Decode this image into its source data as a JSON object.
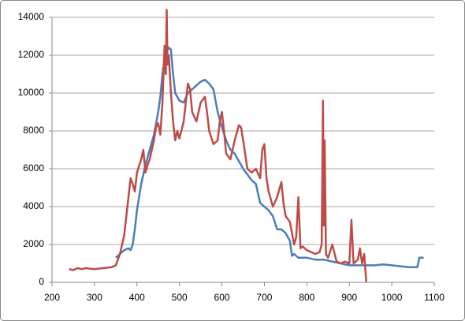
{
  "chart_data": {
    "type": "line",
    "xlim": [
      200,
      1100
    ],
    "xticks": [
      200,
      300,
      400,
      500,
      600,
      700,
      800,
      900,
      1000,
      1100
    ],
    "ylim": [
      0,
      14000
    ],
    "yticks": [
      0,
      2000,
      4000,
      6000,
      8000,
      10000,
      12000,
      14000
    ],
    "grid": true,
    "series": [
      {
        "color": "#4a7ebb",
        "x": [
          350,
          360,
          370,
          380,
          385,
          390,
          395,
          400,
          405,
          410,
          420,
          430,
          440,
          450,
          455,
          460,
          465,
          470,
          475,
          480,
          485,
          490,
          500,
          510,
          520,
          530,
          540,
          550,
          560,
          570,
          580,
          590,
          600,
          610,
          620,
          630,
          640,
          650,
          660,
          670,
          680,
          690,
          700,
          710,
          720,
          730,
          740,
          750,
          760,
          765,
          770,
          780,
          800,
          820,
          840,
          860,
          880,
          900,
          920,
          940,
          960,
          980,
          1000,
          1020,
          1040,
          1060,
          1065,
          1075
        ],
        "values": [
          1300,
          1500,
          1700,
          1800,
          1700,
          2000,
          2800,
          3800,
          4500,
          5200,
          6200,
          7000,
          7800,
          9000,
          9800,
          11000,
          11800,
          12200,
          12400,
          12300,
          11000,
          10000,
          9600,
          9500,
          10000,
          10200,
          10400,
          10600,
          10700,
          10500,
          10200,
          9000,
          8200,
          7500,
          7000,
          6800,
          6400,
          6000,
          5700,
          5400,
          5200,
          4200,
          4000,
          3800,
          3500,
          2800,
          2800,
          2600,
          2200,
          1400,
          1500,
          1300,
          1300,
          1200,
          1200,
          1100,
          1000,
          900,
          900,
          900,
          900,
          950,
          900,
          850,
          800,
          800,
          1300,
          1300
        ]
      },
      {
        "color": "#be4b48",
        "x": [
          240,
          250,
          260,
          270,
          280,
          300,
          320,
          340,
          350,
          360,
          370,
          375,
          380,
          385,
          390,
          395,
          400,
          410,
          415,
          420,
          425,
          430,
          440,
          445,
          450,
          455,
          460,
          465,
          468,
          470,
          472,
          475,
          480,
          485,
          490,
          495,
          500,
          510,
          515,
          520,
          525,
          530,
          540,
          550,
          560,
          565,
          570,
          580,
          590,
          595,
          600,
          605,
          610,
          620,
          630,
          640,
          645,
          650,
          660,
          670,
          680,
          690,
          695,
          700,
          705,
          710,
          720,
          730,
          740,
          745,
          750,
          760,
          770,
          775,
          780,
          785,
          790,
          800,
          810,
          820,
          830,
          835,
          838,
          840,
          842,
          845,
          850,
          860,
          870,
          880,
          890,
          900,
          905,
          910,
          920,
          925,
          930,
          935,
          940
        ],
        "values": [
          700,
          650,
          750,
          700,
          750,
          700,
          750,
          800,
          900,
          1500,
          2500,
          3500,
          4500,
          5500,
          5200,
          4800,
          5800,
          6500,
          7000,
          5800,
          6200,
          6500,
          7500,
          8200,
          8400,
          7800,
          9500,
          12500,
          11000,
          14400,
          11500,
          12000,
          10000,
          8500,
          7500,
          8000,
          7600,
          8500,
          9500,
          10500,
          10200,
          9000,
          8500,
          9500,
          9800,
          9000,
          8000,
          7300,
          7500,
          8500,
          9000,
          8000,
          6800,
          6500,
          7500,
          8300,
          8200,
          7500,
          6000,
          5800,
          6000,
          5500,
          7000,
          7300,
          5500,
          4800,
          4000,
          4500,
          5300,
          4200,
          3500,
          3200,
          2000,
          2400,
          4500,
          1800,
          1900,
          1700,
          1600,
          1500,
          1600,
          2000,
          9600,
          3000,
          7500,
          1500,
          1300,
          2000,
          1100,
          1000,
          1100,
          1000,
          3300,
          1000,
          1200,
          1800,
          1000,
          1500,
          0
        ]
      }
    ]
  }
}
